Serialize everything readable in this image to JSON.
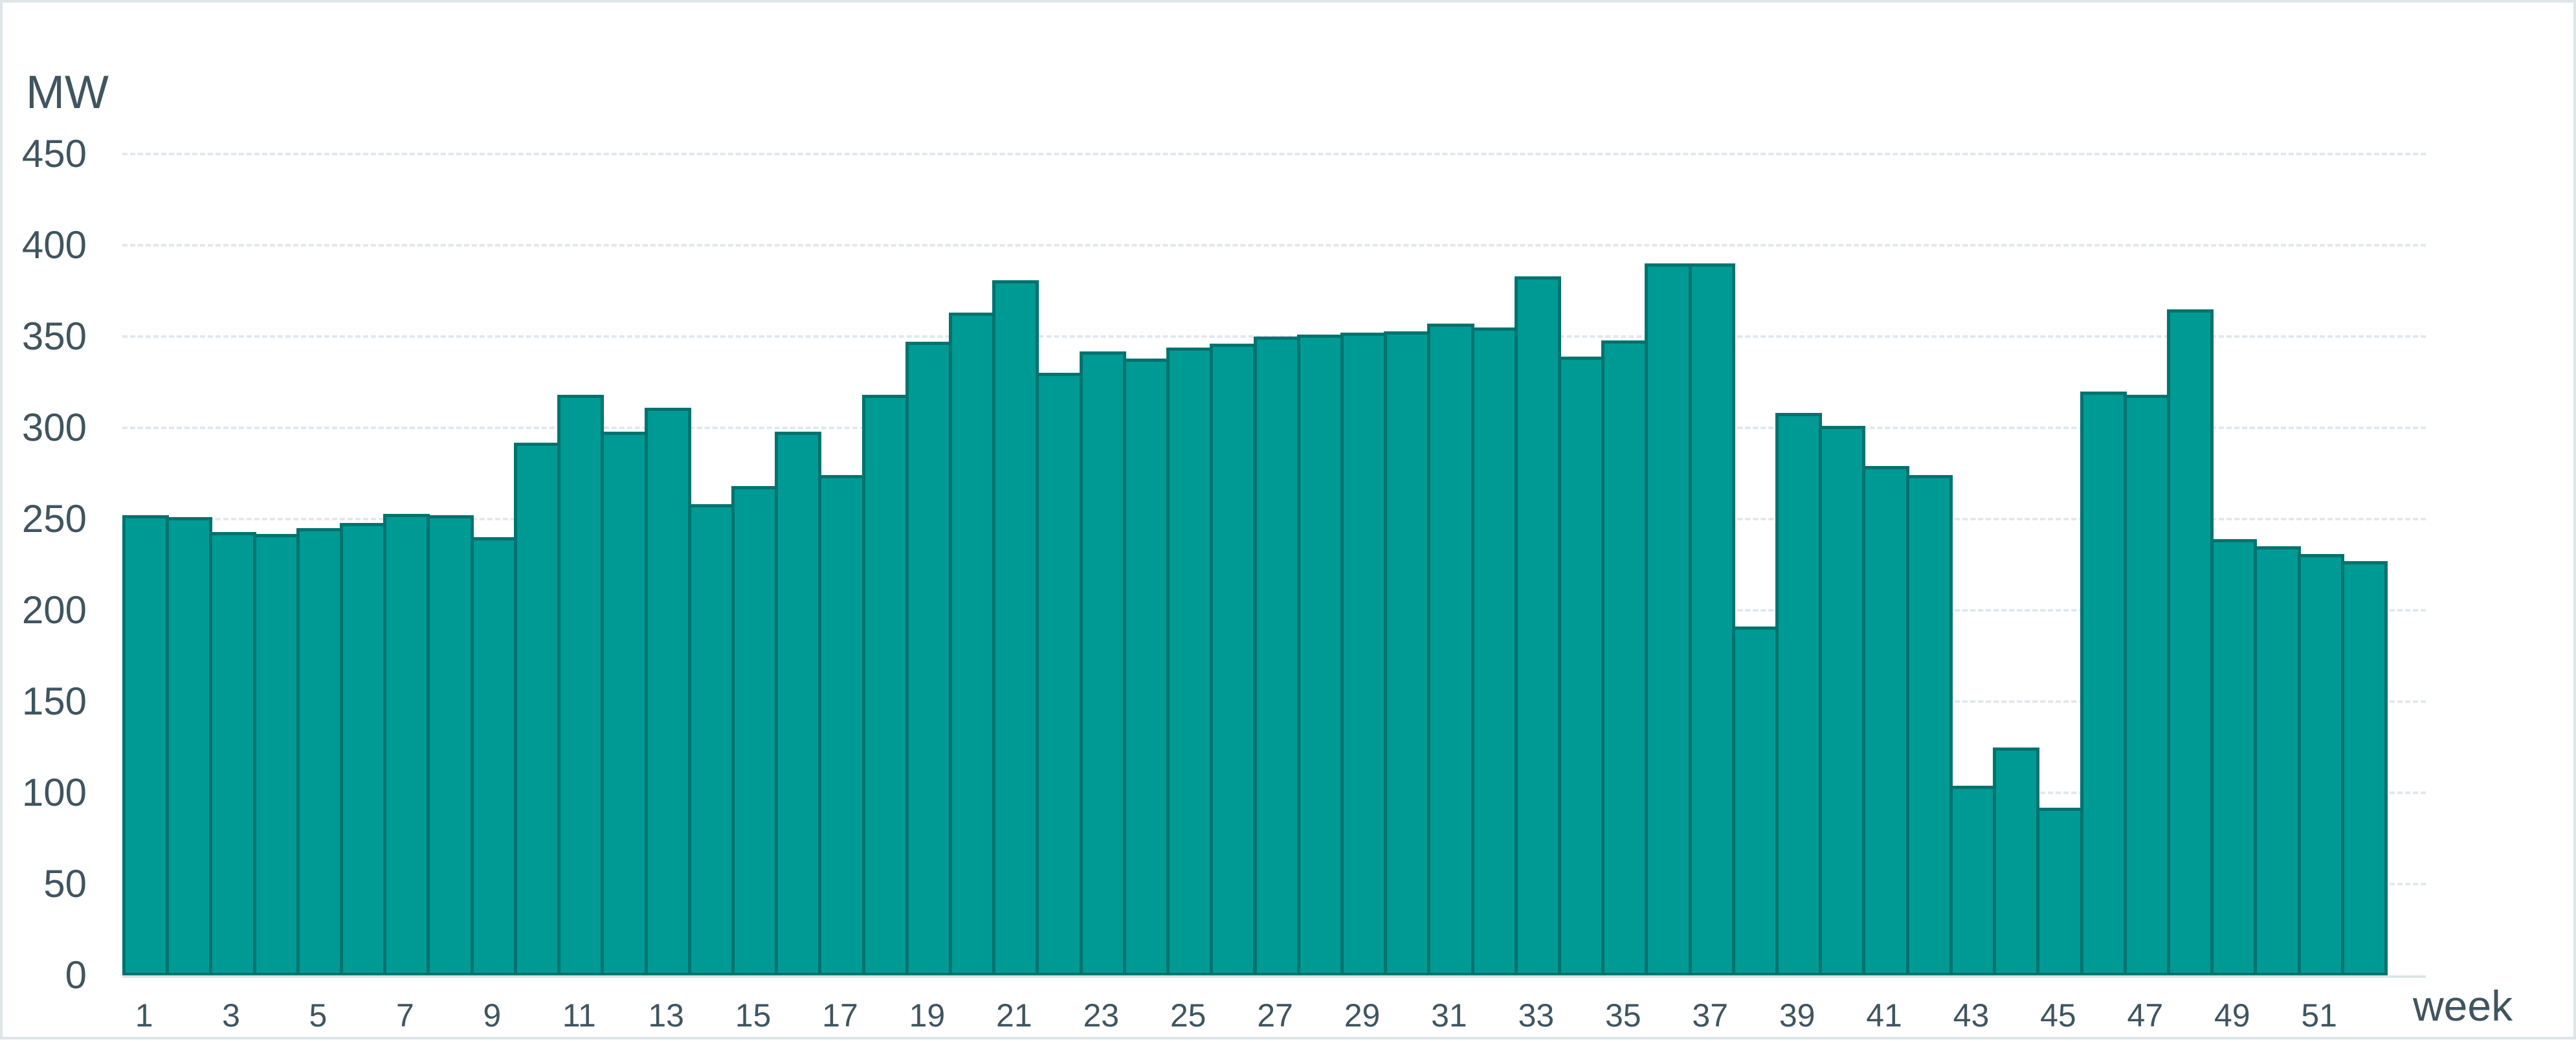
{
  "chart_data": {
    "type": "bar",
    "title": "",
    "xlabel": "week",
    "ylabel": "MW",
    "ylim": [
      0,
      450
    ],
    "yticks": [
      0,
      50,
      100,
      150,
      200,
      250,
      300,
      350,
      400,
      450
    ],
    "xtick_labels": [
      "1",
      "3",
      "5",
      "7",
      "9",
      "11",
      "13",
      "15",
      "17",
      "19",
      "21",
      "23",
      "25",
      "27",
      "29",
      "31",
      "33",
      "35",
      "37",
      "39",
      "41",
      "43",
      "45",
      "47",
      "49",
      "51"
    ],
    "grid": true,
    "legend": null,
    "categories": [
      1,
      2,
      3,
      4,
      5,
      6,
      7,
      8,
      9,
      10,
      11,
      12,
      13,
      14,
      15,
      16,
      17,
      18,
      19,
      20,
      21,
      22,
      23,
      24,
      25,
      26,
      27,
      28,
      29,
      30,
      31,
      32,
      33,
      34,
      35,
      36,
      37,
      38,
      39,
      40,
      41,
      42,
      43,
      44,
      45,
      46,
      47,
      48,
      49,
      50,
      51,
      52
    ],
    "values": [
      252,
      251,
      243,
      242,
      245,
      248,
      253,
      252,
      240,
      292,
      318,
      298,
      311,
      258,
      268,
      298,
      274,
      318,
      347,
      363,
      381,
      330,
      342,
      338,
      344,
      346,
      350,
      351,
      352,
      353,
      357,
      355,
      383,
      339,
      348,
      390,
      390,
      191,
      308,
      301,
      279,
      274,
      104,
      125,
      92,
      320,
      318,
      365,
      239,
      235,
      231,
      227
    ],
    "colors": {
      "bar_fill": "#009a94",
      "bar_edge": "#00736f",
      "text": "#3f5560",
      "grid": "#e2e8ed"
    }
  },
  "axis": {
    "y_unit": "MW",
    "x_unit": "week"
  }
}
